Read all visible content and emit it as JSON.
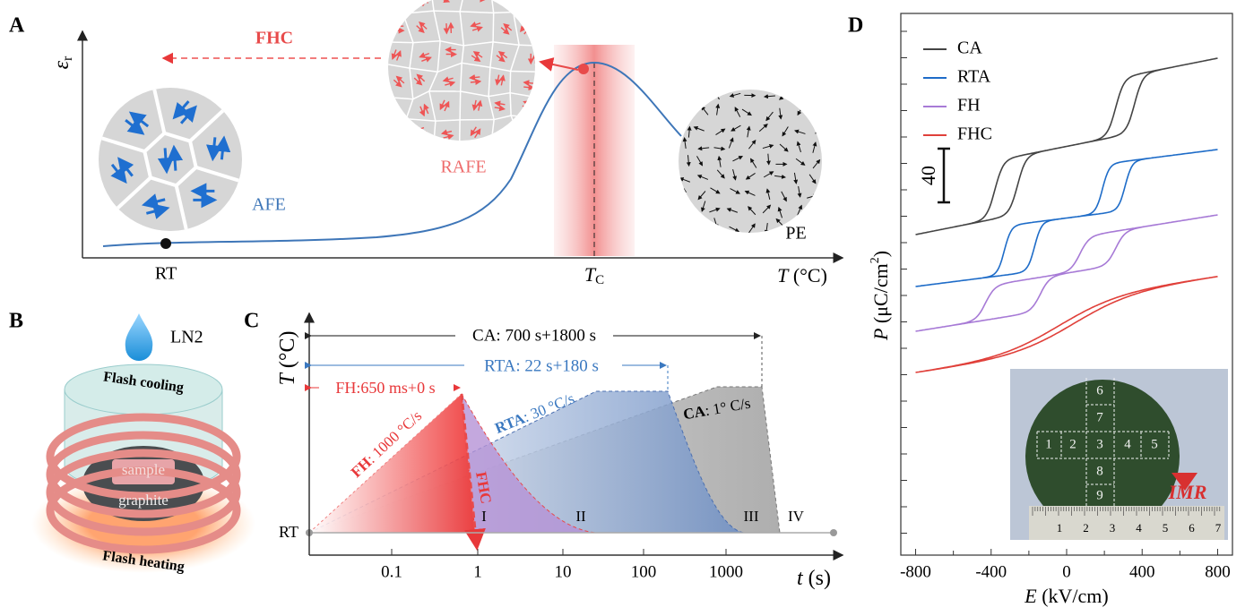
{
  "panel_a": {
    "label": "A",
    "y_label": {
      "symbol": "ε",
      "subscript": "r"
    },
    "arrow_label": "FHC",
    "phases": {
      "afe": "AFE",
      "rafe": "RAFE",
      "pe": "PE"
    },
    "x_labels": {
      "rt": "RT",
      "tc": {
        "symbol": "T",
        "subscript": "C"
      }
    },
    "x_axis": {
      "symbol": "T",
      "unit": "(°C)"
    }
  },
  "panel_b": {
    "label": "B",
    "coolant": "LN2",
    "top": "Flash cooling",
    "sample": "sample",
    "substrate": "graphite",
    "bottom": "Flash heating"
  },
  "panel_c": {
    "label": "C",
    "y_axis": {
      "symbol": "T",
      "unit": "(°C)"
    },
    "x_axis": {
      "symbol": "t",
      "unit": "(s)"
    },
    "start": "RT",
    "x_ticks": [
      "0.1",
      "1",
      "10",
      "100",
      "1000"
    ],
    "durations": {
      "ca": "CA: 700 s+1800 s",
      "rta": "RTA: 22 s+180 s",
      "fh": "FH:650 ms+0 s"
    },
    "rates": [
      {
        "name": "FH",
        "rate": ": 1000 °C/s"
      },
      {
        "name": "RTA",
        "rate": ": 30 °C/s"
      },
      {
        "name": "CA",
        "rate": ": 1° C/s"
      }
    ],
    "cooling": "FHC",
    "stages": [
      "I",
      "II",
      "III",
      "IV"
    ]
  },
  "panel_d": {
    "label": "D",
    "legend": [
      "CA",
      "RTA",
      "FH",
      "FHC"
    ],
    "scale_bar": "40",
    "y_axis": {
      "symbol": "P",
      "unit": "(μC/cm",
      "sup": "2",
      "close": ")"
    },
    "x_axis": {
      "symbol": "E",
      "unit": "(kV/cm)"
    },
    "x_ticks": [
      "-800",
      "-400",
      "0",
      "400",
      "800"
    ],
    "inset": {
      "samples": [
        "1",
        "2",
        "3",
        "4",
        "5",
        "6",
        "7",
        "8",
        "9"
      ],
      "logo": "IMR",
      "ruler": [
        "1",
        "2",
        "3",
        "4",
        "5",
        "6",
        "7"
      ]
    }
  }
}
